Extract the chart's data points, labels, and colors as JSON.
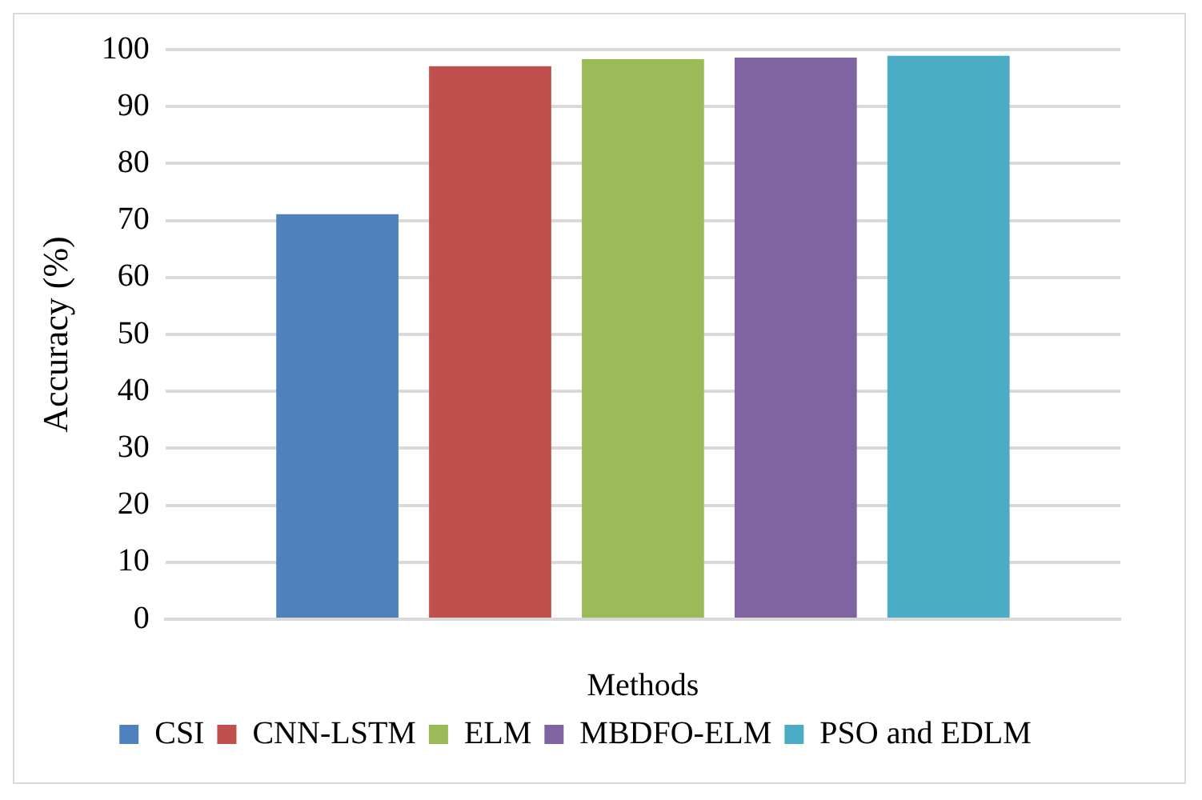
{
  "chart_data": {
    "type": "bar",
    "xlabel": "Methods",
    "ylabel": "Accuracy (%)",
    "categories": [
      null
    ],
    "series": [
      {
        "name": "CSI",
        "color": "#4f81bd",
        "values": [
          71.1
        ]
      },
      {
        "name": "CNN-LSTM",
        "color": "#c0504d",
        "values": [
          97.1
        ]
      },
      {
        "name": "ELM",
        "color": "#9bbb59",
        "values": [
          98.3
        ]
      },
      {
        "name": "MBDFO-ELM",
        "color": "#8064a2",
        "values": [
          98.6
        ]
      },
      {
        "name": "PSO and EDLM",
        "color": "#4bacc6",
        "values": [
          98.9
        ]
      }
    ],
    "ylim": [
      0,
      100
    ],
    "yticks": [
      0,
      10,
      20,
      30,
      40,
      50,
      60,
      70,
      80,
      90,
      100
    ],
    "grid": "y",
    "legend": "bottom"
  }
}
